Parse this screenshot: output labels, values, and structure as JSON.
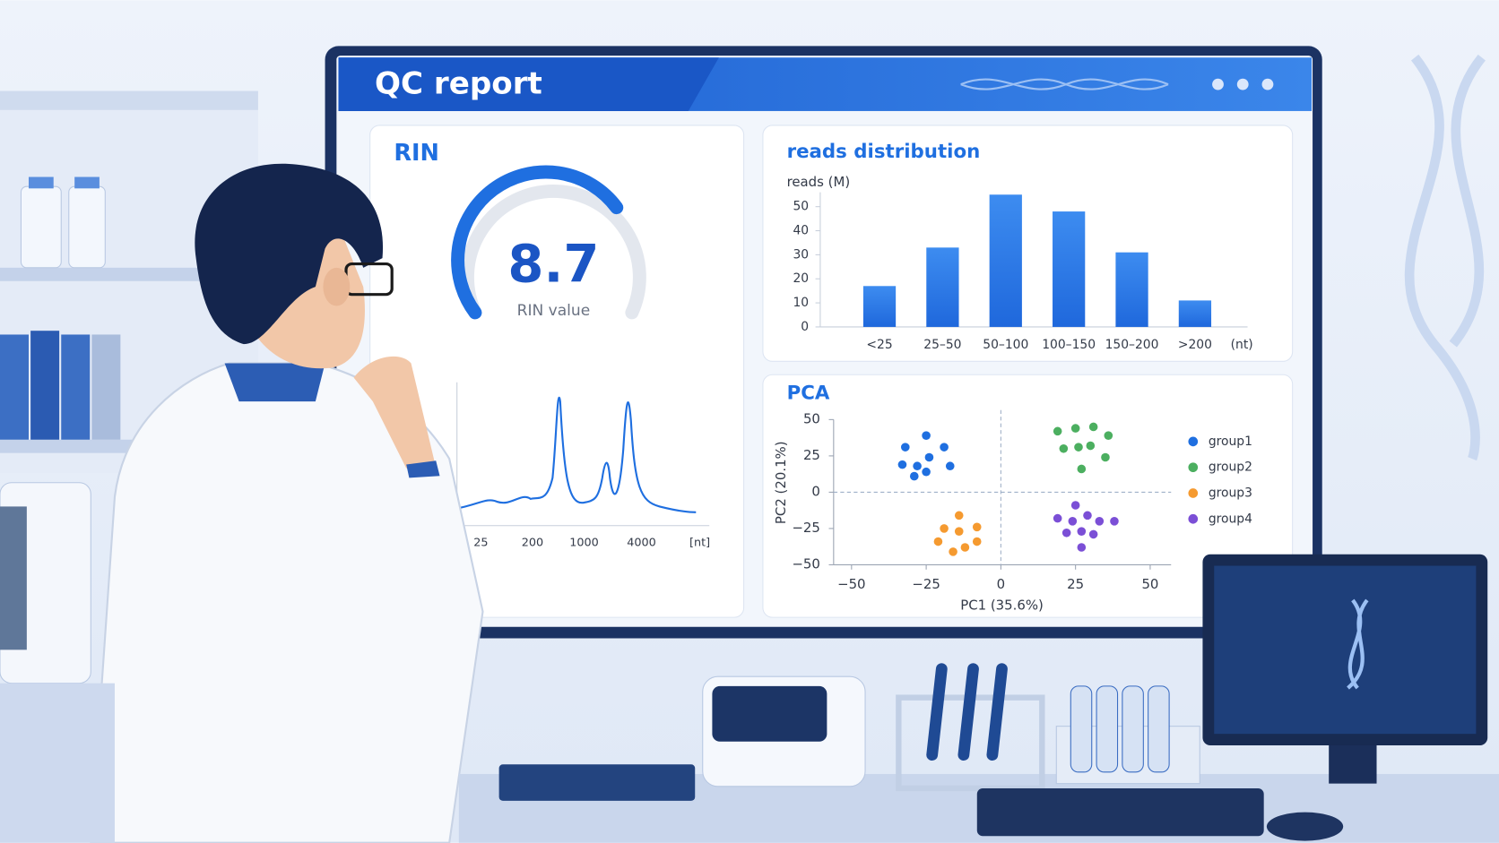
{
  "header": {
    "title": "QC report"
  },
  "rin": {
    "title": "RIN",
    "value": 8.7,
    "value_label": "RIN value",
    "trace_ticks": [
      "25",
      "200",
      "1000",
      "4000"
    ],
    "trace_unit": "[nt]"
  },
  "reads": {
    "chart_data": {
      "type": "bar",
      "title": "reads distribution",
      "y_label": "reads (M)",
      "x_unit": "(nt)",
      "categories": [
        "<25",
        "25–50",
        "50–100",
        "100–150",
        "150–200",
        ">200"
      ],
      "values": [
        17,
        33,
        55,
        48,
        31,
        11
      ],
      "color": "#2f7fe8",
      "ylim": [
        0,
        56
      ],
      "yticks": [
        0,
        10,
        20,
        30,
        40,
        50
      ]
    }
  },
  "pca": {
    "chart_data": {
      "type": "scatter",
      "title": "PCA",
      "x_label": "PC1 (35.6%)",
      "y_label": "PC2 (20.1%)",
      "xlim": [
        -56,
        57
      ],
      "ylim": [
        -50,
        50
      ],
      "xticks": [
        {
          "value": -50,
          "label": "−50"
        },
        {
          "value": -25,
          "label": "−25"
        },
        0,
        25,
        50
      ],
      "yticks": [
        50,
        25,
        0,
        {
          "value": -25,
          "label": "−25"
        },
        {
          "value": -50,
          "label": "−50"
        }
      ],
      "series": [
        {
          "name": "group1",
          "color": "#1f6fe0",
          "x": [
            -32,
            -25,
            -19,
            -33,
            -28,
            -24,
            -17,
            -29,
            -25
          ],
          "values": [
            31,
            39,
            31,
            19,
            18,
            24,
            18,
            11,
            14
          ]
        },
        {
          "name": "group2",
          "color": "#4caf60",
          "x": [
            19,
            25,
            31,
            21,
            26,
            30,
            36,
            35,
            27
          ],
          "values": [
            42,
            44,
            45,
            30,
            31,
            32,
            39,
            24,
            16
          ]
        },
        {
          "name": "group3",
          "color": "#f59a30",
          "x": [
            -14,
            -19,
            -14,
            -8,
            -21,
            -16,
            -12,
            -8
          ],
          "values": [
            -16,
            -25,
            -27,
            -24,
            -34,
            -41,
            -38,
            -34
          ]
        },
        {
          "name": "group4",
          "color": "#7b4fd6",
          "x": [
            25,
            19,
            24,
            29,
            33,
            38,
            22,
            27,
            31,
            27
          ],
          "values": [
            -9,
            -18,
            -20,
            -16,
            -20,
            -20,
            -28,
            -27,
            -29,
            -38
          ]
        }
      ]
    }
  }
}
